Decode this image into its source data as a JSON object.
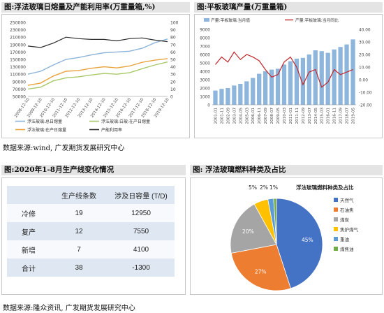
{
  "panels": {
    "tl_title": "图:浮法玻璃日熔量及产能利用率(万重量箱,%)",
    "tr_title": "图:平板玻璃产量(万重量箱)",
    "bl_title": "图:2020年1-8月生产线变化情况",
    "br_title": "图:  浮法玻璃燃料种类及占比",
    "source1": "数据来源:wind, 广发期货发展研究中心",
    "source2": "数据来源:隆众资讯, 广发期货发展研究中心"
  },
  "chart_data": [
    {
      "type": "line",
      "x": [
        "2008-12-10",
        "2009-12-10",
        "2010-12-10",
        "2011-12-10",
        "2012-12-10",
        "2013-12-10",
        "2014-12-10",
        "2015-12-10",
        "2016-12-10",
        "2017-12-10",
        "2018-12-10",
        "2019-12-10"
      ],
      "left_axis": {
        "ylim": [
          50000,
          250000
        ],
        "ticks": [
          "50000",
          "70000",
          "90000",
          "110000",
          "130000",
          "150000",
          "170000",
          "190000",
          "210000",
          "230000",
          "250000"
        ]
      },
      "right_axis": {
        "ylim": [
          0,
          100
        ],
        "ticks": [
          "0",
          "10",
          "20",
          "30",
          "40",
          "50",
          "60",
          "70",
          "80",
          "90",
          "100"
        ]
      },
      "series": [
        {
          "name": "浮法玻璃:总日熔量",
          "color": "#8cb4d8",
          "axis": "left",
          "values": [
            110000,
            118000,
            135000,
            150000,
            155000,
            162000,
            168000,
            170000,
            172000,
            180000,
            195000,
            205000
          ]
        },
        {
          "name": "浮法玻璃:白玻:在产日熔量",
          "color": "#a8c96a",
          "axis": "left",
          "values": [
            70000,
            75000,
            92000,
            100000,
            103000,
            108000,
            112000,
            110000,
            114000,
            125000,
            135000,
            143000
          ]
        },
        {
          "name": "浮法玻璃:在产日熔量",
          "color": "#e8a33c",
          "axis": "left",
          "values": [
            80000,
            86000,
            105000,
            118000,
            120000,
            126000,
            130000,
            127000,
            132000,
            142000,
            148000,
            152000
          ]
        },
        {
          "name": "产能利用率",
          "color": "#2b2b2b",
          "axis": "right",
          "values": [
            68,
            66,
            72,
            80,
            78,
            77,
            77,
            75,
            78,
            79,
            76,
            74
          ]
        }
      ]
    },
    {
      "type": "bar",
      "x": [
        "2001-01",
        "2001-11",
        "2002-09",
        "2003-07",
        "2004-05",
        "2005-03",
        "2006-01",
        "2006-11",
        "2007-09",
        "2008-07",
        "2009-05",
        "2010-03",
        "2011-01",
        "2011-11",
        "2012-09",
        "2013-07",
        "2014-05",
        "2015-03",
        "2016-01",
        "2016-11",
        "2017-09",
        "2018-07",
        "2019-05"
      ],
      "left_axis": {
        "ylim": [
          0,
          9000
        ],
        "ticks": [
          "0",
          "1000",
          "2000",
          "3000",
          "4000",
          "5000",
          "6000",
          "7000",
          "8000",
          "9000"
        ]
      },
      "right_axis": {
        "ylim": [
          -20,
          40
        ],
        "ticks": [
          "-20.00",
          "-10.00",
          "0.00",
          "10.00",
          "20.00",
          "30.00",
          "40.00"
        ]
      },
      "series": [
        {
          "name": "产量:平板玻璃:当月值",
          "color": "#8eb6dd",
          "axis": "left",
          "values": [
            1700,
            1900,
            2000,
            2300,
            2500,
            2800,
            3200,
            3700,
            4000,
            4200,
            4300,
            4800,
            5200,
            5500,
            5600,
            6000,
            6500,
            6400,
            6200,
            6600,
            6900,
            7200,
            7800
          ]
        },
        {
          "name": "产量:平板玻璃:当月同比",
          "color": "#c0262c",
          "axis": "right",
          "values": [
            12,
            18,
            14,
            22,
            16,
            20,
            18,
            15,
            8,
            2,
            4,
            14,
            18,
            10,
            -4,
            6,
            8,
            -6,
            -2,
            8,
            4,
            6,
            8
          ]
        }
      ]
    },
    {
      "type": "table",
      "headers": [
        "",
        "生产线条数",
        "涉及日容量 (T/D)"
      ],
      "rows": [
        [
          "冷修",
          "19",
          "12950"
        ],
        [
          "复产",
          "12",
          "7550"
        ],
        [
          "新增",
          "7",
          "4100"
        ],
        [
          "合计",
          "38",
          "-1300"
        ]
      ]
    },
    {
      "type": "pie",
      "title": "浮法玻璃燃料种类及占比",
      "slices": [
        {
          "label": "天然气",
          "value": 45,
          "display": "45%",
          "color": "#4472c4"
        },
        {
          "label": "石油焦",
          "value": 27,
          "display": "27%",
          "color": "#ed7d31"
        },
        {
          "label": "煤炭",
          "value": 20,
          "display": "20%",
          "color": "#a5a5a5"
        },
        {
          "label": "焦炉煤气",
          "value": 5,
          "display": "5%",
          "color": "#ffc000"
        },
        {
          "label": "重油",
          "value": 2,
          "display": "2%",
          "color": "#5b9bd5"
        },
        {
          "label": "煤焦油",
          "value": 1,
          "display": "1%",
          "color": "#70ad47"
        }
      ]
    }
  ]
}
